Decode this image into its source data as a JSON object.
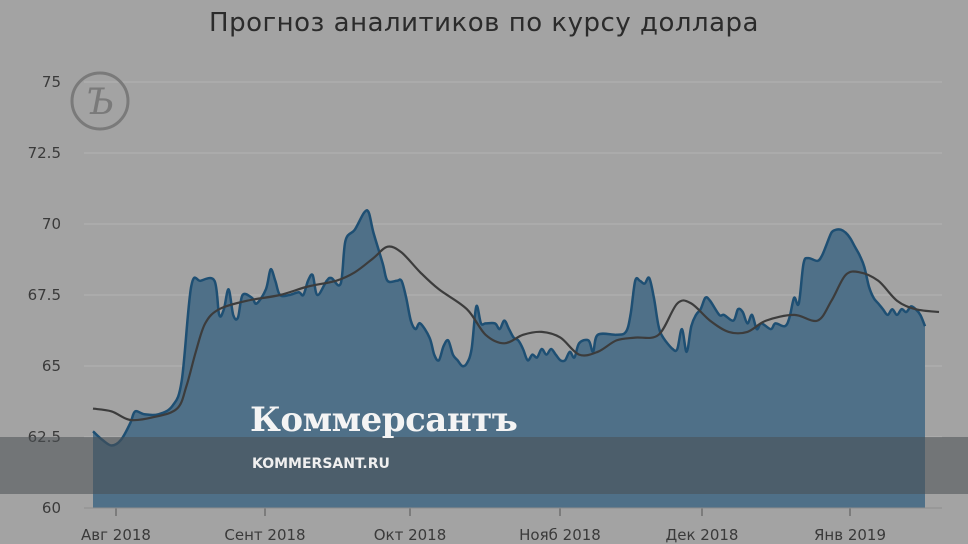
{
  "chart_data": {
    "type": "area",
    "title": "Прогноз аналитиков по курсу доллара",
    "xlabel": "",
    "ylabel": "",
    "ylim": [
      60,
      75
    ],
    "yticks": [
      "60",
      "62.5",
      "65",
      "67.5",
      "70",
      "72.5",
      "75"
    ],
    "xticks": [
      "Авг 2018",
      "Сент 2018",
      "Окт 2018",
      "Нояб 2018",
      "Дек 2018",
      "Янв 2019"
    ],
    "grid": true,
    "colors": {
      "area_fill": "#4f7088",
      "area_line": "#1e4f73",
      "trend_line": "#3c3c3c",
      "grid": "#b3b3b3",
      "background": "#a3a3a3"
    },
    "series": [
      {
        "values": [
          [
            0,
            62.7
          ],
          [
            2,
            62.4
          ],
          [
            4,
            62.2
          ],
          [
            6,
            62.4
          ],
          [
            8,
            63.0
          ],
          [
            9,
            63.4
          ],
          [
            11,
            63.3
          ],
          [
            14,
            63.3
          ],
          [
            17,
            63.6
          ],
          [
            19,
            64.5
          ],
          [
            21,
            67.8
          ],
          [
            23,
            68.0
          ],
          [
            26,
            68.0
          ],
          [
            27,
            66.8
          ],
          [
            28,
            67.0
          ],
          [
            29,
            67.7
          ],
          [
            30,
            66.8
          ],
          [
            31,
            66.7
          ],
          [
            32,
            67.5
          ],
          [
            34,
            67.4
          ],
          [
            35,
            67.2
          ],
          [
            37,
            67.7
          ],
          [
            38,
            68.4
          ],
          [
            39,
            68.0
          ],
          [
            40,
            67.5
          ],
          [
            42,
            67.5
          ],
          [
            44,
            67.6
          ],
          [
            45,
            67.5
          ],
          [
            46,
            68.0
          ],
          [
            47,
            68.2
          ],
          [
            48,
            67.5
          ],
          [
            50,
            68.0
          ],
          [
            51,
            68.1
          ],
          [
            53,
            67.9
          ],
          [
            54,
            69.4
          ],
          [
            56,
            69.8
          ],
          [
            58,
            70.4
          ],
          [
            59,
            70.4
          ],
          [
            60,
            69.7
          ],
          [
            62,
            68.6
          ],
          [
            63,
            68.0
          ],
          [
            65,
            68.0
          ],
          [
            66,
            68.0
          ],
          [
            67,
            67.4
          ],
          [
            68,
            66.6
          ],
          [
            69,
            66.3
          ],
          [
            70,
            66.5
          ],
          [
            72,
            66.0
          ],
          [
            73,
            65.4
          ],
          [
            74,
            65.2
          ],
          [
            75,
            65.7
          ],
          [
            76,
            65.9
          ],
          [
            77,
            65.4
          ],
          [
            78,
            65.2
          ],
          [
            79,
            65.0
          ],
          [
            80,
            65.1
          ],
          [
            81,
            65.6
          ],
          [
            82,
            67.1
          ],
          [
            83,
            66.5
          ],
          [
            84,
            66.5
          ],
          [
            86,
            66.5
          ],
          [
            87,
            66.3
          ],
          [
            88,
            66.6
          ],
          [
            89,
            66.3
          ],
          [
            90,
            66.0
          ],
          [
            91,
            65.9
          ],
          [
            92,
            65.6
          ],
          [
            93,
            65.2
          ],
          [
            94,
            65.4
          ],
          [
            95,
            65.3
          ],
          [
            96,
            65.6
          ],
          [
            97,
            65.4
          ],
          [
            98,
            65.6
          ],
          [
            99,
            65.4
          ],
          [
            100,
            65.2
          ],
          [
            101,
            65.2
          ],
          [
            102,
            65.5
          ],
          [
            103,
            65.3
          ],
          [
            104,
            65.8
          ],
          [
            106,
            65.9
          ],
          [
            107,
            65.5
          ],
          [
            108,
            66.1
          ],
          [
            112,
            66.1
          ],
          [
            114,
            66.2
          ],
          [
            115,
            66.8
          ],
          [
            116,
            68.0
          ],
          [
            117,
            68.0
          ],
          [
            118,
            67.9
          ],
          [
            119,
            68.1
          ],
          [
            120,
            67.4
          ],
          [
            121,
            66.4
          ],
          [
            122,
            66.0
          ],
          [
            124,
            65.6
          ],
          [
            125,
            65.6
          ],
          [
            126,
            66.3
          ],
          [
            127,
            65.5
          ],
          [
            128,
            66.4
          ],
          [
            129,
            66.8
          ],
          [
            130,
            67.0
          ],
          [
            131,
            67.4
          ],
          [
            132,
            67.3
          ],
          [
            134,
            66.8
          ],
          [
            135,
            66.8
          ],
          [
            137,
            66.6
          ],
          [
            138,
            67.0
          ],
          [
            139,
            66.9
          ],
          [
            140,
            66.5
          ],
          [
            141,
            66.8
          ],
          [
            142,
            66.3
          ],
          [
            143,
            66.5
          ],
          [
            145,
            66.3
          ],
          [
            146,
            66.5
          ],
          [
            148,
            66.4
          ],
          [
            149,
            66.7
          ],
          [
            150,
            67.4
          ],
          [
            151,
            67.2
          ],
          [
            152,
            68.6
          ],
          [
            153,
            68.8
          ],
          [
            155,
            68.7
          ],
          [
            156,
            68.9
          ],
          [
            157,
            69.3
          ],
          [
            158,
            69.7
          ],
          [
            159,
            69.8
          ],
          [
            160,
            69.8
          ],
          [
            161,
            69.7
          ],
          [
            162,
            69.5
          ],
          [
            163,
            69.2
          ],
          [
            164,
            68.9
          ],
          [
            165,
            68.5
          ],
          [
            166,
            67.8
          ],
          [
            167,
            67.4
          ],
          [
            168,
            67.2
          ],
          [
            169,
            67.0
          ],
          [
            170,
            66.8
          ],
          [
            171,
            67.0
          ],
          [
            172,
            66.8
          ],
          [
            173,
            67.0
          ],
          [
            174,
            66.9
          ],
          [
            175,
            67.1
          ],
          [
            176,
            67.0
          ],
          [
            177,
            66.8
          ],
          [
            178,
            66.4
          ]
        ]
      },
      {
        "values": [
          [
            0,
            63.5
          ],
          [
            4,
            63.4
          ],
          [
            8,
            63.1
          ],
          [
            13,
            63.2
          ],
          [
            18,
            63.5
          ],
          [
            20,
            64.3
          ],
          [
            22,
            65.5
          ],
          [
            24,
            66.5
          ],
          [
            27,
            67.0
          ],
          [
            33,
            67.3
          ],
          [
            40,
            67.5
          ],
          [
            46,
            67.8
          ],
          [
            52,
            68.0
          ],
          [
            56,
            68.3
          ],
          [
            60,
            68.8
          ],
          [
            63,
            69.2
          ],
          [
            66,
            69.0
          ],
          [
            70,
            68.3
          ],
          [
            74,
            67.7
          ],
          [
            80,
            67.0
          ],
          [
            84,
            66.1
          ],
          [
            88,
            65.8
          ],
          [
            92,
            66.1
          ],
          [
            96,
            66.2
          ],
          [
            100,
            66.0
          ],
          [
            104,
            65.4
          ],
          [
            108,
            65.5
          ],
          [
            112,
            65.9
          ],
          [
            116,
            66.0
          ],
          [
            121,
            66.1
          ],
          [
            125,
            67.2
          ],
          [
            128,
            67.2
          ],
          [
            132,
            66.6
          ],
          [
            136,
            66.2
          ],
          [
            140,
            66.2
          ],
          [
            144,
            66.6
          ],
          [
            150,
            66.8
          ],
          [
            155,
            66.6
          ],
          [
            158,
            67.3
          ],
          [
            161,
            68.2
          ],
          [
            164,
            68.3
          ],
          [
            168,
            68.0
          ],
          [
            172,
            67.3
          ],
          [
            176,
            67.0
          ],
          [
            181,
            66.9
          ]
        ]
      }
    ]
  },
  "brand": {
    "name": "Коммерсантъ",
    "url": "KOMMERSANT.RU",
    "logo_glyph": "Ъ"
  }
}
